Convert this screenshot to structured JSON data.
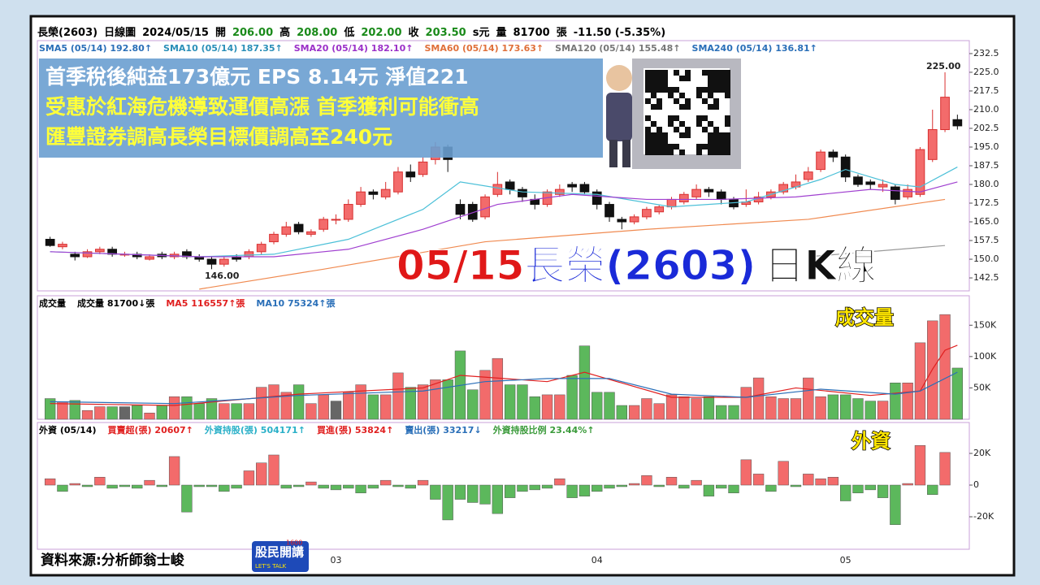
{
  "header": {
    "items": [
      {
        "text": "長榮(2603)",
        "color": "#000"
      },
      {
        "text": "日線圖",
        "color": "#000"
      },
      {
        "text": "2024/05/15",
        "color": "#000"
      },
      {
        "text": "開",
        "color": "#000"
      },
      {
        "text": "206.00",
        "color": "#1a8a1a"
      },
      {
        "text": "高",
        "color": "#000"
      },
      {
        "text": "208.00",
        "color": "#1a8a1a"
      },
      {
        "text": "低",
        "color": "#000"
      },
      {
        "text": "202.00",
        "color": "#1a8a1a"
      },
      {
        "text": "收",
        "color": "#000"
      },
      {
        "text": "203.50",
        "color": "#1a8a1a"
      },
      {
        "text": "s元",
        "color": "#000"
      },
      {
        "text": "量",
        "color": "#000"
      },
      {
        "text": "81700",
        "color": "#000"
      },
      {
        "text": "張",
        "color": "#000"
      },
      {
        "text": "-11.50 (-5.35%)",
        "color": "#000"
      }
    ]
  },
  "overlay": {
    "lines": [
      "首季稅後純益173億元 EPS 8.14元 淨值221",
      "受惠於紅海危機導致運價高漲 首季獲利可能衝高",
      "匯豐證券調高長榮目標價調高至240元"
    ],
    "title": [
      "05/15",
      "長榮",
      "(2603)",
      "日K線"
    ],
    "volume_tag": "成交量",
    "foreign_tag": "外資"
  },
  "source": "資料來源:分析師翁士峻",
  "logo": {
    "name": "股民開講",
    "number": "1600",
    "slogan": "LET'S TALK"
  },
  "chart_data": [
    {
      "type": "candlestick",
      "up_color": "#f36b6b",
      "down_color": "#111",
      "categories": [
        null,
        null,
        null,
        null,
        null,
        null,
        null,
        null,
        null,
        null,
        null,
        null,
        null,
        null,
        null,
        null,
        null,
        null,
        null,
        null,
        null,
        null,
        null,
        "03",
        null,
        null,
        null,
        null,
        null,
        null,
        null,
        null,
        null,
        null,
        null,
        null,
        null,
        null,
        null,
        null,
        null,
        null,
        null,
        null,
        "04",
        null,
        null,
        null,
        null,
        null,
        null,
        null,
        null,
        null,
        null,
        null,
        null,
        null,
        null,
        null,
        null,
        null,
        null,
        null,
        "05",
        null,
        null,
        null,
        null,
        null,
        null,
        null,
        null,
        null
      ],
      "open": [
        158,
        155,
        152,
        151,
        153,
        154,
        152,
        152,
        150,
        152,
        151,
        153,
        151,
        150,
        148,
        151,
        151,
        153,
        157,
        160,
        164,
        160,
        162,
        166,
        166,
        172,
        177,
        175,
        177,
        185,
        184,
        190,
        195,
        172,
        172,
        167,
        176,
        181,
        178,
        174,
        172,
        176,
        180,
        180,
        177,
        172,
        166,
        165,
        167,
        169,
        171,
        173,
        175,
        178,
        177,
        174,
        172,
        173,
        175,
        177,
        179,
        182,
        186,
        193,
        191,
        183,
        181,
        179,
        179,
        175,
        176,
        190,
        202,
        206
      ],
      "high": [
        159,
        157,
        153,
        154,
        155,
        155,
        153,
        153,
        152,
        153,
        153,
        154,
        152,
        151,
        151,
        152,
        154,
        157,
        161,
        165,
        165,
        162,
        167,
        168,
        174,
        179,
        178,
        181,
        187,
        188,
        191,
        197,
        196,
        174,
        173,
        176,
        185,
        182,
        179,
        176,
        178,
        180,
        181,
        181,
        178,
        173,
        167,
        168,
        171,
        172,
        175,
        177,
        180,
        179,
        178,
        175,
        178,
        177,
        178,
        181,
        184,
        187,
        194,
        194,
        192,
        184,
        182,
        182,
        180,
        180,
        195,
        210,
        225,
        208
      ],
      "low": [
        155,
        154,
        149.5,
        150.5,
        152,
        151,
        151,
        150,
        149.5,
        150,
        150,
        150,
        149,
        146,
        147,
        149,
        150,
        152,
        156,
        159,
        160,
        159,
        161,
        164,
        165,
        171,
        174,
        174,
        176,
        181,
        183,
        188,
        185,
        166,
        165,
        166,
        175,
        176,
        173,
        170,
        171,
        175,
        177,
        176,
        170,
        165,
        162,
        164,
        166,
        168,
        170,
        172,
        174,
        175,
        172,
        170,
        171,
        172,
        174,
        176,
        178,
        181,
        185,
        189,
        181,
        179,
        178,
        177,
        172,
        174,
        175,
        189,
        201,
        202
      ],
      "close": [
        155.5,
        156,
        151,
        153,
        154,
        152,
        152,
        151,
        151,
        151,
        152,
        151,
        150,
        148,
        150,
        150,
        153,
        156,
        160,
        163,
        161,
        161,
        166,
        166,
        172,
        177,
        176,
        178,
        185,
        183,
        189,
        195,
        190,
        168,
        166,
        175,
        180,
        178,
        175,
        172,
        177,
        178,
        179,
        177,
        172,
        167,
        165,
        167,
        170,
        171,
        174,
        176,
        178,
        177,
        174,
        171,
        173,
        175,
        177,
        180,
        181,
        185,
        193,
        191,
        183,
        180,
        180,
        180,
        174,
        178,
        194,
        202,
        215,
        203.5
      ],
      "ylim": [
        137.3,
        237.7
      ],
      "yticks": [
        142.5,
        {
          "value": 150,
          "label": "150.0"
        },
        157.5,
        {
          "value": 165,
          "label": "165.0"
        },
        172.5,
        {
          "value": 180,
          "label": "180.0"
        },
        187.5,
        {
          "value": 195,
          "label": "195.0"
        },
        202.5,
        {
          "value": 210,
          "label": "210.0"
        },
        217.5,
        {
          "value": 225,
          "label": "225.0"
        },
        232.5
      ],
      "legend": [
        {
          "text": "SMA5 (05/14) 192.80↑",
          "color": "#2a6fb8"
        },
        {
          "text": "SMA10 (05/14) 187.35↑",
          "color": "#2a8fb8"
        },
        {
          "text": "SMA20 (05/14) 182.10↑",
          "color": "#9b30c8"
        },
        {
          "text": "SMA60 (05/14) 173.63↑",
          "color": "#e0703a"
        },
        {
          "text": "SMA120 (05/14) 155.48↑",
          "color": "#777"
        },
        {
          "text": "SMA240 (05/14) 136.81↑",
          "color": "#2a6fb8"
        }
      ],
      "series": [
        {
          "color": "#4cc0d8",
          "x": [
            0,
            6,
            12,
            18,
            24,
            30,
            33,
            38,
            44,
            50,
            56,
            62,
            64,
            68,
            70,
            73
          ],
          "values": [
            153,
            152,
            151,
            152,
            158,
            170,
            181,
            177,
            176,
            171,
            173,
            182,
            186,
            180,
            179,
            187
          ]
        },
        {
          "color": "#a040d0",
          "x": [
            0,
            12,
            18,
            24,
            30,
            36,
            42,
            48,
            54,
            60,
            66,
            70,
            73
          ],
          "values": [
            153,
            151,
            151,
            154,
            162,
            172,
            176,
            174,
            174,
            175,
            178,
            177,
            181
          ]
        },
        {
          "color": "#f08a50",
          "x": [
            12,
            22,
            35,
            48,
            61,
            72
          ],
          "values": [
            138,
            146,
            157,
            162,
            166,
            174
          ]
        },
        {
          "color": "#999",
          "x": [
            61,
            72
          ],
          "values": [
            151,
            155.5
          ]
        }
      ],
      "annotations": [
        "146.00",
        "225.00"
      ]
    },
    {
      "type": "volume",
      "values": [
        33,
        28,
        30,
        14,
        20,
        20,
        20,
        22,
        10,
        22,
        36,
        36,
        25,
        33,
        25,
        25,
        25,
        51,
        55,
        43,
        55,
        25,
        39,
        29,
        43,
        55,
        39,
        39,
        74,
        51,
        55,
        63,
        63,
        109,
        47,
        78,
        97,
        55,
        55,
        36,
        39,
        39,
        70,
        117,
        43,
        43,
        22,
        22,
        33,
        25,
        39,
        36,
        33,
        36,
        22,
        22,
        51,
        66,
        36,
        33,
        33,
        66,
        36,
        39,
        39,
        33,
        29,
        29,
        58,
        58,
        122,
        157,
        167,
        81.7
      ],
      "ylim": [
        0,
        197
      ],
      "yticks": [
        {
          "value": 50,
          "label": "50K"
        },
        {
          "value": 100,
          "label": "100K"
        },
        {
          "value": 150,
          "label": "150K"
        }
      ],
      "legend": [
        {
          "text": "成交量",
          "color": "#000"
        },
        {
          "text": "成交量 81700↓張",
          "color": "#000"
        },
        {
          "text": "MA5 116557↑張",
          "color": "#e02020"
        },
        {
          "text": "MA10 75324↑張",
          "color": "#2a6fb8"
        }
      ],
      "series": [
        {
          "color": "#e02020",
          "x": [
            0,
            10,
            20,
            30,
            33,
            40,
            43,
            50,
            56,
            60,
            66,
            70,
            71,
            72,
            73
          ],
          "values": [
            25,
            22,
            40,
            50,
            70,
            60,
            75,
            35,
            35,
            50,
            38,
            45,
            80,
            110,
            118
          ]
        },
        {
          "color": "#2a6fb8",
          "x": [
            0,
            10,
            20,
            30,
            35,
            40,
            45,
            50,
            56,
            62,
            68,
            70,
            73
          ],
          "values": [
            28,
            25,
            38,
            45,
            60,
            65,
            65,
            40,
            35,
            48,
            40,
            45,
            75
          ]
        }
      ]
    },
    {
      "type": "netbar",
      "pos_color": "#f36b6b",
      "neg_color": "#5cb85c",
      "values": [
        4,
        -4,
        1,
        -1,
        5,
        -2,
        -1,
        -2,
        3,
        -1,
        18,
        -17,
        -1,
        -1,
        -4,
        -2,
        9,
        14,
        19,
        -2,
        -1,
        2,
        -2,
        -3,
        -2,
        -5,
        -2,
        3,
        -1,
        -2,
        3,
        -9,
        -22,
        -9,
        -11,
        -12,
        -18,
        -8,
        -4,
        -3,
        -2,
        4,
        -8,
        -7,
        -4,
        -2,
        -1,
        1,
        6,
        -1,
        5,
        -2,
        3,
        -7,
        -2,
        -5,
        16,
        7,
        -4,
        15,
        -1,
        7,
        4,
        5,
        -10,
        -5,
        -3,
        -8,
        -25,
        1,
        25,
        -6,
        20.607,
        null
      ],
      "ylim": [
        -40.5,
        39.5
      ],
      "yticks": [
        {
          "value": -20,
          "label": "-20K"
        },
        0,
        {
          "value": 20,
          "label": "20K"
        }
      ],
      "legend": [
        {
          "text": "外資 (05/14)",
          "color": "#000"
        },
        {
          "text": "買賣超(張) 20607↑",
          "color": "#e02020"
        },
        {
          "text": "外資持股(張) 504171↑",
          "color": "#2ab0c8"
        },
        {
          "text": "買進(張) 53824↑",
          "color": "#e02020"
        },
        {
          "text": "賣出(張) 33217↓",
          "color": "#2a6fb8"
        },
        {
          "text": "外資持股比例 23.44%↑",
          "color": "#3a9a3a"
        }
      ]
    }
  ]
}
